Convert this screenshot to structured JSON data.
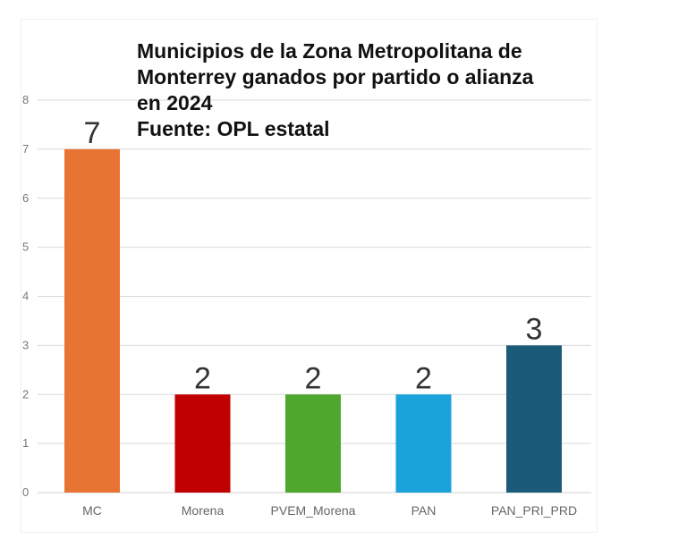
{
  "chart_data": {
    "type": "bar",
    "title_lines": [
      "Municipios de la Zona Metropolitana de",
      "Monterrey ganados por partido o alianza",
      "en 2024",
      "Fuente: OPL estatal"
    ],
    "categories": [
      "MC",
      "Morena",
      "PVEM_Morena",
      "PAN",
      "PAN_PRI_PRD"
    ],
    "values": [
      7,
      2,
      2,
      2,
      3
    ],
    "data_labels": [
      "7",
      "2",
      "2",
      "2",
      "3"
    ],
    "colors": [
      "#E87434",
      "#C00000",
      "#4FA82E",
      "#1AA2DB",
      "#1B5B79"
    ],
    "ylim": [
      0,
      8
    ],
    "yticks": [
      0,
      1,
      2,
      3,
      4,
      5,
      6,
      7,
      8
    ],
    "xlabel": "",
    "ylabel": "",
    "grid": true,
    "legend": "none"
  }
}
